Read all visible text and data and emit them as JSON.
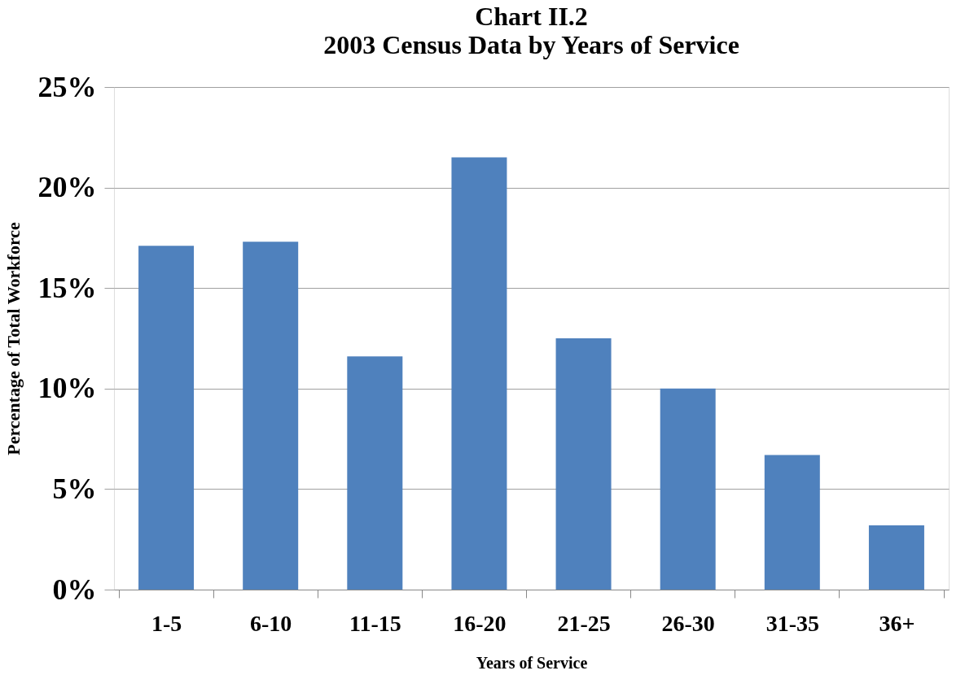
{
  "chart_data": {
    "type": "bar",
    "title": "Chart II.2",
    "subtitle": "2003 Census Data by Years of Service",
    "xlabel": "Years of Service",
    "ylabel": "Percentage of Total Workforce",
    "categories": [
      "1-5",
      "6-10",
      "11-15",
      "16-20",
      "21-25",
      "26-30",
      "31-35",
      "36+"
    ],
    "values": [
      17.1,
      17.3,
      11.6,
      21.5,
      12.5,
      10.0,
      6.7,
      3.2
    ],
    "color": "#4f81bd",
    "ylim": [
      0,
      25
    ],
    "yticks": [
      {
        "value": 0,
        "label": "0%"
      },
      {
        "value": 5,
        "label": "5%"
      },
      {
        "value": 10,
        "label": "10%"
      },
      {
        "value": 15,
        "label": "15%"
      },
      {
        "value": 20,
        "label": "20%"
      },
      {
        "value": 25,
        "label": "25%"
      }
    ],
    "grid": "y"
  }
}
